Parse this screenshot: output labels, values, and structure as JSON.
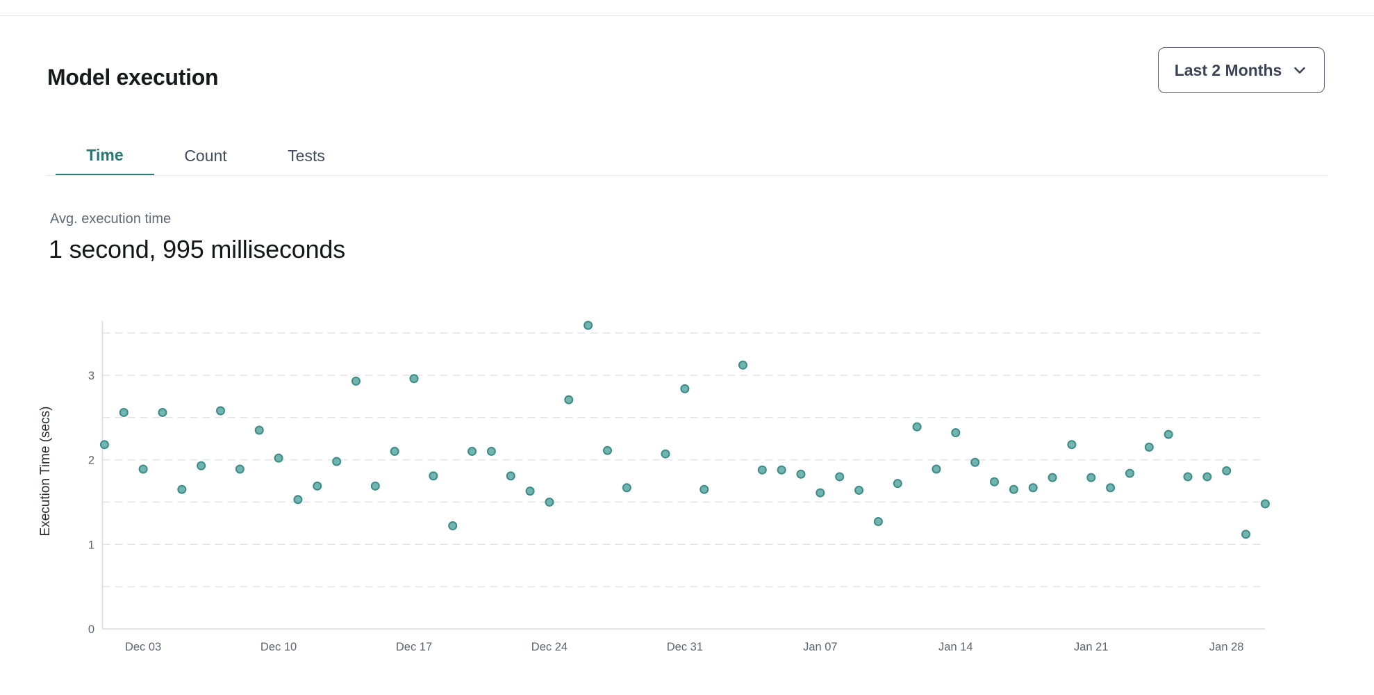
{
  "header": {
    "title": "Model execution",
    "range_selector": {
      "value": "Last 2 Months",
      "icon": "chevron-down"
    }
  },
  "tabs": {
    "items": [
      {
        "label": "Time",
        "active": true
      },
      {
        "label": "Count",
        "active": false
      },
      {
        "label": "Tests",
        "active": false
      }
    ]
  },
  "metric": {
    "label": "Avg. execution time",
    "value": "1 second, 995 milliseconds"
  },
  "chart_data": {
    "type": "scatter",
    "title": "",
    "xlabel": "",
    "ylabel": "Execution Time (secs)",
    "ylim": [
      0,
      3.62
    ],
    "yticks": [
      0,
      1,
      2,
      3
    ],
    "grid_interval": 0.5,
    "grid_style": "dashed",
    "legend": "none",
    "xticks": [
      "Dec 03",
      "Dec 10",
      "Dec 17",
      "Dec 24",
      "Dec 31",
      "Jan 07",
      "Jan 14",
      "Jan 21",
      "Jan 28"
    ],
    "x_domain": [
      "Dec 01",
      "Jan 30"
    ],
    "missing_days": [
      "Dec 29",
      "Jan 02"
    ],
    "colors": {
      "marker_fill": "#71b5b1",
      "marker_stroke": "#3d8b87",
      "grid": "#e4e5e9",
      "axis": "#d9dbde",
      "tick_text": "#5b6570",
      "axis_title_text": "#242b33"
    },
    "points": [
      {
        "date": "Dec 01",
        "secs": 2.18
      },
      {
        "date": "Dec 02",
        "secs": 2.56
      },
      {
        "date": "Dec 03",
        "secs": 1.89
      },
      {
        "date": "Dec 04",
        "secs": 2.56
      },
      {
        "date": "Dec 05",
        "secs": 1.65
      },
      {
        "date": "Dec 06",
        "secs": 1.93
      },
      {
        "date": "Dec 07",
        "secs": 2.58
      },
      {
        "date": "Dec 08",
        "secs": 1.89
      },
      {
        "date": "Dec 09",
        "secs": 2.35
      },
      {
        "date": "Dec 10",
        "secs": 2.02
      },
      {
        "date": "Dec 11",
        "secs": 1.53
      },
      {
        "date": "Dec 12",
        "secs": 1.69
      },
      {
        "date": "Dec 13",
        "secs": 1.98
      },
      {
        "date": "Dec 14",
        "secs": 2.93
      },
      {
        "date": "Dec 15",
        "secs": 1.69
      },
      {
        "date": "Dec 16",
        "secs": 2.1
      },
      {
        "date": "Dec 17",
        "secs": 2.96
      },
      {
        "date": "Dec 18",
        "secs": 1.81
      },
      {
        "date": "Dec 19",
        "secs": 1.22
      },
      {
        "date": "Dec 20",
        "secs": 2.1
      },
      {
        "date": "Dec 21",
        "secs": 2.1
      },
      {
        "date": "Dec 22",
        "secs": 1.81
      },
      {
        "date": "Dec 23",
        "secs": 1.63
      },
      {
        "date": "Dec 24",
        "secs": 1.5
      },
      {
        "date": "Dec 25",
        "secs": 2.71
      },
      {
        "date": "Dec 26",
        "secs": 3.59
      },
      {
        "date": "Dec 27",
        "secs": 2.11
      },
      {
        "date": "Dec 28",
        "secs": 1.67
      },
      {
        "date": "Dec 30",
        "secs": 2.07
      },
      {
        "date": "Dec 31",
        "secs": 2.84
      },
      {
        "date": "Jan 01",
        "secs": 1.65
      },
      {
        "date": "Jan 03",
        "secs": 3.12
      },
      {
        "date": "Jan 04",
        "secs": 1.88
      },
      {
        "date": "Jan 05",
        "secs": 1.88
      },
      {
        "date": "Jan 06",
        "secs": 1.83
      },
      {
        "date": "Jan 07",
        "secs": 1.61
      },
      {
        "date": "Jan 08",
        "secs": 1.8
      },
      {
        "date": "Jan 09",
        "secs": 1.64
      },
      {
        "date": "Jan 10",
        "secs": 1.27
      },
      {
        "date": "Jan 11",
        "secs": 1.72
      },
      {
        "date": "Jan 12",
        "secs": 2.39
      },
      {
        "date": "Jan 13",
        "secs": 1.89
      },
      {
        "date": "Jan 14",
        "secs": 2.32
      },
      {
        "date": "Jan 15",
        "secs": 1.97
      },
      {
        "date": "Jan 16",
        "secs": 1.74
      },
      {
        "date": "Jan 17",
        "secs": 1.65
      },
      {
        "date": "Jan 18",
        "secs": 1.67
      },
      {
        "date": "Jan 19",
        "secs": 1.79
      },
      {
        "date": "Jan 20",
        "secs": 2.18
      },
      {
        "date": "Jan 21",
        "secs": 1.79
      },
      {
        "date": "Jan 22",
        "secs": 1.67
      },
      {
        "date": "Jan 23",
        "secs": 1.84
      },
      {
        "date": "Jan 24",
        "secs": 2.15
      },
      {
        "date": "Jan 25",
        "secs": 2.3
      },
      {
        "date": "Jan 26",
        "secs": 1.8
      },
      {
        "date": "Jan 27",
        "secs": 1.8
      },
      {
        "date": "Jan 28",
        "secs": 1.87
      },
      {
        "date": "Jan 29",
        "secs": 1.12
      },
      {
        "date": "Jan 30",
        "secs": 1.48
      }
    ]
  },
  "colors": {
    "accent_teal": "#2b7776",
    "text_dark": "#17191c",
    "text_slate": "#414c5c",
    "text_muted": "#5d6a76",
    "divider": "#e6e7e9"
  }
}
